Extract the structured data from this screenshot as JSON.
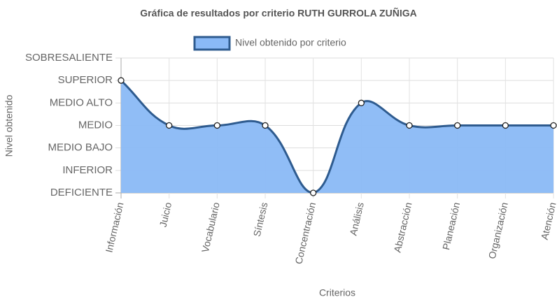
{
  "chart_data": {
    "type": "line",
    "title": "Gráfica de resultados por criterio RUTH GURROLA ZUÑIGA",
    "x_label": "Criterios",
    "y_label": "Nivel obtenido",
    "categories": [
      "Información",
      "Juicio",
      "Vocabulario",
      "Síntesis",
      "Concentración",
      "Análisis",
      "Abstracción",
      "Planeación",
      "Organización",
      "Atención"
    ],
    "series": [
      {
        "name": "Nivel obtenido por criterio",
        "color": "#2e5b8f",
        "fill_color": "#8ab9f6",
        "values": [
          5,
          3,
          3,
          3,
          0,
          4,
          3,
          3,
          3,
          3
        ]
      }
    ],
    "ylim": [
      0,
      6
    ],
    "yticks": [
      {
        "value": 0,
        "label": "DEFICIENTE"
      },
      {
        "value": 1,
        "label": "INFERIOR"
      },
      {
        "value": 2,
        "label": "MEDIO BAJO"
      },
      {
        "value": 3,
        "label": "MEDIO"
      },
      {
        "value": 4,
        "label": "MEDIO ALTO"
      },
      {
        "value": 5,
        "label": "SUPERIOR"
      },
      {
        "value": 6,
        "label": "SOBRESALIENTE"
      }
    ],
    "grid": true,
    "legend": "top"
  }
}
